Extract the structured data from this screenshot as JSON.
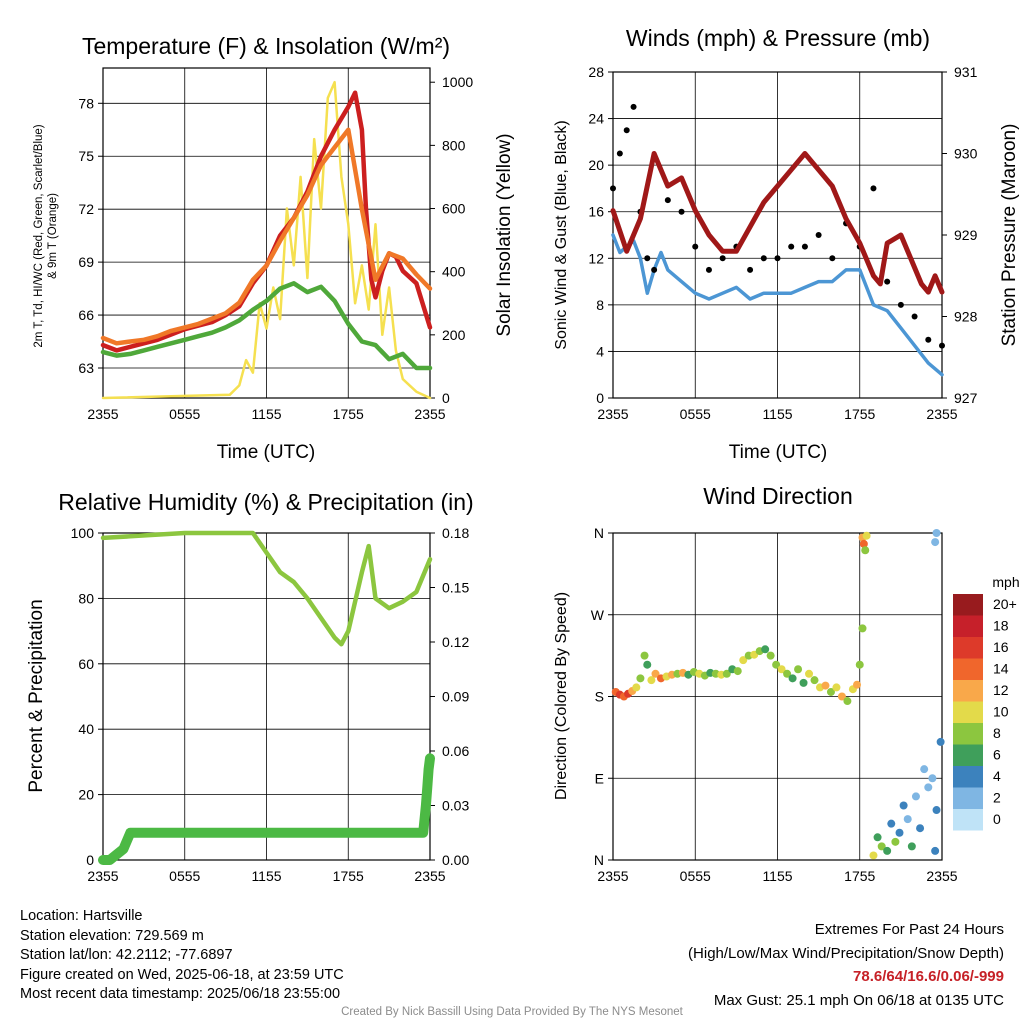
{
  "colors": {
    "temperature": "#cc1f1f",
    "temp_9m": "#f07828",
    "dewpoint": "#4fa83a",
    "insolation": "#f5e050",
    "gust": "#000000",
    "wind": "#4c96d4",
    "pressure": "#a01818",
    "humidity": "#8cc63f",
    "precip": "#4cb944",
    "extremes_text": "#c62127"
  },
  "chart_data": [
    {
      "id": "temperature",
      "type": "line",
      "title": "Temperature (F) & Insolation (W/m²)",
      "xlabel": "Time (UTC)",
      "ylabel": "2m T, Td, HI/WC (Red, Green, Scarlet/Blue) & 9m T (Orange)",
      "ylabel_lines": [
        "2m T, T⁤d, HI/WC (Red, Green, Scarlet/Blue)",
        "& 9m T (Orange)"
      ],
      "ylabel_right": "Solar Insolation (Yellow)",
      "x_ticks": [
        "2355",
        "0555",
        "1155",
        "1755",
        "2355"
      ],
      "y_ticks": [
        63,
        66,
        69,
        72,
        75,
        78
      ],
      "y_right_ticks": [
        0,
        200,
        400,
        600,
        800,
        1000
      ],
      "ylim": [
        61.3,
        80.0
      ],
      "ylim_right": [
        0,
        1045
      ],
      "series": [
        {
          "name": "2m T",
          "color": "#cc1f1f",
          "x": [
            0,
            1,
            2,
            3,
            4,
            5,
            6,
            7,
            8,
            9,
            10,
            11,
            12,
            13,
            14,
            15,
            16,
            17,
            18,
            18.5,
            19,
            19.3,
            19.7,
            20,
            20.5,
            21,
            21.5,
            22,
            23,
            24
          ],
          "y": [
            64.3,
            64.0,
            64.2,
            64.4,
            64.6,
            64.9,
            65.2,
            65.4,
            65.6,
            66.0,
            66.5,
            67.8,
            68.8,
            70.5,
            71.5,
            73.0,
            75.0,
            76.5,
            77.8,
            78.6,
            76.5,
            72.0,
            68.0,
            67.0,
            68.5,
            69.5,
            69.3,
            68.5,
            67.8,
            65.3
          ]
        },
        {
          "name": "9m T",
          "color": "#f07828",
          "x": [
            0,
            1,
            2,
            3,
            4,
            5,
            6,
            7,
            8,
            9,
            10,
            11,
            12,
            13,
            14,
            15,
            16,
            17,
            18,
            19,
            20,
            21,
            22,
            23,
            24
          ],
          "y": [
            64.7,
            64.4,
            64.5,
            64.6,
            64.8,
            65.1,
            65.3,
            65.5,
            65.8,
            66.1,
            66.7,
            68.0,
            68.8,
            70.2,
            71.5,
            72.8,
            74.5,
            75.5,
            76.5,
            72.0,
            68.0,
            69.5,
            69.2,
            68.3,
            67.5
          ]
        },
        {
          "name": "Td",
          "color": "#4fa83a",
          "x": [
            0,
            1,
            2,
            3,
            4,
            5,
            6,
            7,
            8,
            9,
            10,
            11,
            12,
            13,
            14,
            15,
            16,
            17,
            18,
            19,
            20,
            21,
            22,
            23,
            24
          ],
          "y": [
            63.9,
            63.7,
            63.8,
            64.0,
            64.2,
            64.4,
            64.6,
            64.8,
            65.0,
            65.3,
            65.7,
            66.3,
            66.8,
            67.5,
            67.8,
            67.3,
            67.6,
            66.8,
            65.5,
            64.5,
            64.3,
            63.5,
            63.8,
            63.0,
            63.0
          ]
        },
        {
          "name": "Insolation",
          "color": "#f5e050",
          "axis": "right",
          "x": [
            0,
            9.3,
            10,
            10.5,
            11,
            11.5,
            12,
            12.5,
            13,
            13.5,
            14,
            14.5,
            15,
            15.5,
            16,
            16.5,
            17,
            17.5,
            18,
            18.5,
            19,
            19.5,
            20,
            20.5,
            21,
            21.5,
            22,
            22.5,
            23,
            24
          ],
          "y": [
            0,
            10,
            40,
            120,
            80,
            300,
            220,
            350,
            250,
            600,
            420,
            700,
            380,
            820,
            600,
            950,
            1000,
            700,
            550,
            300,
            420,
            280,
            550,
            200,
            350,
            150,
            60,
            40,
            20,
            0
          ]
        }
      ]
    },
    {
      "id": "winds",
      "type": "line",
      "title": "Winds (mph) & Pressure (mb)",
      "xlabel": "Time (UTC)",
      "ylabel": "Sonic Wind & Gust (Blue, Black)",
      "ylabel_right": "Station Pressure (Maroon)",
      "x_ticks": [
        "2355",
        "0555",
        "1155",
        "1755",
        "2355"
      ],
      "y_ticks": [
        0,
        4,
        8,
        12,
        16,
        20,
        24,
        28
      ],
      "y_right_ticks": [
        927,
        928,
        929,
        930,
        931
      ],
      "ylim": [
        0,
        28
      ],
      "ylim_right": [
        927,
        931
      ],
      "series": [
        {
          "name": "Sonic Wind",
          "color": "#4c96d4",
          "x": [
            0,
            0.5,
            1,
            1.5,
            2,
            2.5,
            3,
            3.5,
            4,
            5,
            6,
            7,
            8,
            9,
            10,
            11,
            12,
            13,
            14,
            15,
            16,
            17,
            18,
            19,
            20,
            21,
            22,
            23,
            24
          ],
          "y": [
            14,
            12.5,
            13,
            13.5,
            12,
            9,
            11,
            12.5,
            11,
            10,
            9,
            8.5,
            9,
            9.5,
            8.5,
            9,
            9,
            9,
            9.5,
            10,
            10,
            11,
            11,
            8,
            7.5,
            6,
            4.5,
            3,
            2
          ]
        },
        {
          "name": "Gust",
          "color": "#000000",
          "x": [
            0,
            0.5,
            1,
            1.5,
            2,
            2.5,
            3,
            4,
            5,
            6,
            7,
            8,
            9,
            10,
            11,
            12,
            13,
            14,
            15,
            16,
            17,
            18,
            19,
            20,
            21,
            22,
            23,
            24
          ],
          "y": [
            18,
            21,
            23,
            25,
            16,
            12,
            11,
            17,
            16,
            13,
            11,
            12,
            13,
            11,
            12,
            12,
            13,
            13,
            14,
            12,
            15,
            13,
            18,
            10,
            8,
            7,
            5,
            4.5
          ]
        },
        {
          "name": "Pressure",
          "color": "#a01818",
          "axis": "right",
          "x": [
            0,
            1,
            2,
            3,
            4,
            5,
            6,
            7,
            8,
            9,
            10,
            11,
            12,
            13,
            14,
            15,
            16,
            17,
            18,
            19,
            19.5,
            20,
            21,
            22,
            22.5,
            23,
            23.5,
            24
          ],
          "y": [
            929.3,
            928.8,
            929.2,
            930.0,
            929.6,
            929.7,
            929.3,
            929.0,
            928.8,
            928.8,
            929.1,
            929.4,
            929.6,
            929.8,
            930.0,
            929.8,
            929.6,
            929.2,
            928.9,
            928.5,
            928.4,
            928.9,
            929.0,
            928.6,
            928.4,
            928.3,
            928.5,
            928.3
          ]
        }
      ]
    },
    {
      "id": "humidity",
      "type": "line",
      "title": "Relative Humidity (%) & Precipitation (in)",
      "xlabel": "",
      "ylabel": "Percent & Precipitation",
      "x_ticks": [
        "2355",
        "0555",
        "1155",
        "1755",
        "2355"
      ],
      "y_ticks": [
        0,
        20,
        40,
        60,
        80,
        100
      ],
      "y_right_ticks": [
        "0.00",
        "0.03",
        "0.06",
        "0.09",
        "0.12",
        "0.15",
        "0.18"
      ],
      "ylim": [
        0,
        100
      ],
      "ylim_right": [
        0,
        0.18
      ],
      "series": [
        {
          "name": "Relative Humidity",
          "color": "#8cc63f",
          "x": [
            0,
            2,
            4,
            6,
            8,
            10,
            11,
            12,
            13,
            14,
            15,
            16,
            17,
            17.5,
            18,
            19,
            19.5,
            20,
            21,
            22,
            23,
            24
          ],
          "y": [
            98.5,
            99,
            99.5,
            100,
            100,
            100,
            100,
            94,
            88,
            85,
            80,
            74,
            68,
            66,
            70,
            88,
            96,
            80,
            77,
            79,
            82,
            92
          ]
        },
        {
          "name": "Precipitation",
          "color": "#4cb944",
          "axis": "right",
          "x": [
            0,
            0.5,
            1,
            1.5,
            2,
            3,
            6,
            10,
            14,
            18,
            22,
            23.5,
            23.7,
            23.8,
            23.9,
            24
          ],
          "y": [
            0,
            0,
            0.003,
            0.006,
            0.015,
            0.015,
            0.015,
            0.015,
            0.015,
            0.015,
            0.015,
            0.015,
            0.03,
            0.04,
            0.05,
            0.056
          ]
        }
      ]
    },
    {
      "id": "direction",
      "type": "scatter",
      "title": "Wind Direction",
      "xlabel": "",
      "ylabel": "Direction (Colored By Speed)",
      "x_ticks": [
        "2355",
        "0555",
        "1155",
        "1755",
        "2355"
      ],
      "y_ticks": [
        "N",
        "E",
        "S",
        "W",
        "N"
      ],
      "ylim": [
        0,
        360
      ],
      "legend": {
        "title": "mph",
        "labels": [
          "20+",
          "18",
          "16",
          "14",
          "12",
          "10",
          "8",
          "6",
          "4",
          "2",
          "0"
        ],
        "colors": [
          "#981b1e",
          "#c6202a",
          "#dd3a2a",
          "#f0662c",
          "#f9a84a",
          "#e3da4a",
          "#8cc63f",
          "#3f9f5b",
          "#3c82bd",
          "#7fb6e3",
          "#bfe3f7"
        ]
      },
      "points": [
        {
          "t": 0.2,
          "d": 185,
          "s": 14
        },
        {
          "t": 0.5,
          "d": 182,
          "s": 16
        },
        {
          "t": 0.8,
          "d": 180,
          "s": 14
        },
        {
          "t": 1.1,
          "d": 183,
          "s": 16
        },
        {
          "t": 1.4,
          "d": 186,
          "s": 12
        },
        {
          "t": 1.7,
          "d": 190,
          "s": 10
        },
        {
          "t": 2.0,
          "d": 200,
          "s": 8
        },
        {
          "t": 2.3,
          "d": 225,
          "s": 8
        },
        {
          "t": 2.5,
          "d": 215,
          "s": 6
        },
        {
          "t": 2.8,
          "d": 198,
          "s": 10
        },
        {
          "t": 3.1,
          "d": 205,
          "s": 12
        },
        {
          "t": 3.5,
          "d": 200,
          "s": 14
        },
        {
          "t": 3.9,
          "d": 202,
          "s": 10
        },
        {
          "t": 4.3,
          "d": 204,
          "s": 12
        },
        {
          "t": 4.7,
          "d": 205,
          "s": 8
        },
        {
          "t": 5.1,
          "d": 206,
          "s": 12
        },
        {
          "t": 5.5,
          "d": 204,
          "s": 6
        },
        {
          "t": 5.9,
          "d": 207,
          "s": 8
        },
        {
          "t": 6.3,
          "d": 205,
          "s": 10
        },
        {
          "t": 6.7,
          "d": 203,
          "s": 8
        },
        {
          "t": 7.1,
          "d": 206,
          "s": 6
        },
        {
          "t": 7.5,
          "d": 205,
          "s": 8
        },
        {
          "t": 7.9,
          "d": 204,
          "s": 10
        },
        {
          "t": 8.3,
          "d": 205,
          "s": 8
        },
        {
          "t": 8.7,
          "d": 210,
          "s": 6
        },
        {
          "t": 9.1,
          "d": 208,
          "s": 8
        },
        {
          "t": 9.5,
          "d": 220,
          "s": 10
        },
        {
          "t": 9.9,
          "d": 225,
          "s": 8
        },
        {
          "t": 10.3,
          "d": 226,
          "s": 10
        },
        {
          "t": 10.7,
          "d": 230,
          "s": 8
        },
        {
          "t": 11.1,
          "d": 232,
          "s": 6
        },
        {
          "t": 11.5,
          "d": 225,
          "s": 8
        },
        {
          "t": 11.9,
          "d": 215,
          "s": 8
        },
        {
          "t": 12.3,
          "d": 210,
          "s": 10
        },
        {
          "t": 12.7,
          "d": 205,
          "s": 8
        },
        {
          "t": 13.1,
          "d": 200,
          "s": 6
        },
        {
          "t": 13.5,
          "d": 210,
          "s": 8
        },
        {
          "t": 13.9,
          "d": 195,
          "s": 6
        },
        {
          "t": 14.3,
          "d": 205,
          "s": 10
        },
        {
          "t": 14.7,
          "d": 198,
          "s": 8
        },
        {
          "t": 15.1,
          "d": 190,
          "s": 10
        },
        {
          "t": 15.5,
          "d": 192,
          "s": 12
        },
        {
          "t": 15.9,
          "d": 185,
          "s": 8
        },
        {
          "t": 16.3,
          "d": 190,
          "s": 10
        },
        {
          "t": 16.7,
          "d": 180,
          "s": 12
        },
        {
          "t": 17.1,
          "d": 175,
          "s": 8
        },
        {
          "t": 17.5,
          "d": 188,
          "s": 10
        },
        {
          "t": 17.8,
          "d": 193,
          "s": 12
        },
        {
          "t": 18.2,
          "d": 355,
          "s": 12
        },
        {
          "t": 18.3,
          "d": 348,
          "s": 14
        },
        {
          "t": 18.4,
          "d": 341,
          "s": 8
        },
        {
          "t": 18.5,
          "d": 357,
          "s": 10
        },
        {
          "t": 18.2,
          "d": 255,
          "s": 8
        },
        {
          "t": 18.0,
          "d": 215,
          "s": 8
        },
        {
          "t": 19.0,
          "d": 5,
          "s": 10
        },
        {
          "t": 19.3,
          "d": 25,
          "s": 6
        },
        {
          "t": 19.6,
          "d": 15,
          "s": 8
        },
        {
          "t": 20.0,
          "d": 10,
          "s": 6
        },
        {
          "t": 20.3,
          "d": 40,
          "s": 4
        },
        {
          "t": 20.6,
          "d": 20,
          "s": 8
        },
        {
          "t": 20.9,
          "d": 30,
          "s": 4
        },
        {
          "t": 21.2,
          "d": 60,
          "s": 4
        },
        {
          "t": 21.5,
          "d": 45,
          "s": 2
        },
        {
          "t": 21.8,
          "d": 15,
          "s": 6
        },
        {
          "t": 22.1,
          "d": 70,
          "s": 2
        },
        {
          "t": 22.4,
          "d": 35,
          "s": 4
        },
        {
          "t": 22.7,
          "d": 100,
          "s": 2
        },
        {
          "t": 23.0,
          "d": 80,
          "s": 2
        },
        {
          "t": 23.3,
          "d": 90,
          "s": 2
        },
        {
          "t": 23.6,
          "d": 55,
          "s": 4
        },
        {
          "t": 23.9,
          "d": 130,
          "s": 4
        },
        {
          "t": 23.5,
          "d": 10,
          "s": 4
        },
        {
          "t": 23.5,
          "d": 350,
          "s": 2
        },
        {
          "t": 23.6,
          "d": 360,
          "s": 2
        }
      ]
    }
  ],
  "info": {
    "location": "Location: Hartsville",
    "elevation": "Station elevation: 729.569 m",
    "latlon": "Station lat/lon: 42.2112; -77.6897",
    "created": "Figure created on Wed, 2025-06-18, at 23:59 UTC",
    "recent": "Most recent data timestamp: 2025/06/18 23:55:00"
  },
  "extremes": {
    "title": "Extremes For Past 24 Hours",
    "subtitle": "(High/Low/Max Wind/Precipitation/Snow Depth)",
    "values": "78.6/64/16.6/0.06/-999",
    "max_gust": "Max Gust: 25.1 mph On 06/18 at 0135 UTC"
  },
  "credit": "Created By Nick Bassill Using Data Provided By The NYS Mesonet"
}
